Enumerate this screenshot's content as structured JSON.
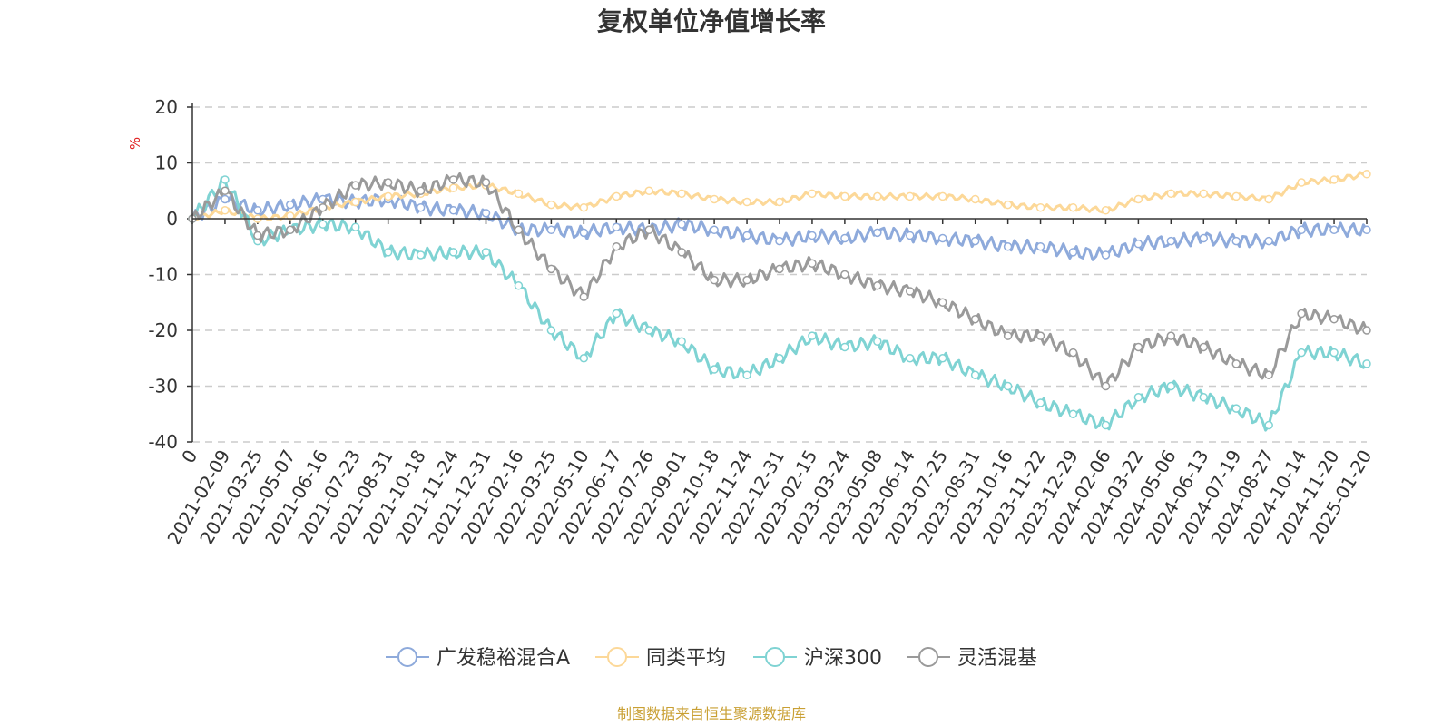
{
  "title": "复权单位净值增长率",
  "source": "制图数据来自恒生聚源数据库",
  "colors": {
    "fund": "#8eaadb",
    "peer": "#fcd898",
    "index": "#7fd3d3",
    "flex": "#9a9a9a",
    "grid": "#cccccc",
    "axis": "#333333"
  },
  "chart_data": {
    "type": "line",
    "title": "复权单位净值增长率",
    "ylabel": "%",
    "ylim": [
      -40,
      20
    ],
    "yticks": [
      20,
      10,
      0,
      -10,
      -20,
      -30,
      -40
    ],
    "grid": true,
    "legend_position": "bottom-center",
    "categories": [
      "0",
      "2021-02-09",
      "2021-03-25",
      "2021-05-07",
      "2021-06-16",
      "2021-07-23",
      "2021-08-31",
      "2021-10-18",
      "2021-11-24",
      "2021-12-31",
      "2022-02-16",
      "2022-03-25",
      "2022-05-10",
      "2022-06-17",
      "2022-07-26",
      "2022-09-01",
      "2022-10-18",
      "2022-11-24",
      "2022-12-31",
      "2023-02-15",
      "2023-03-24",
      "2023-05-08",
      "2023-06-14",
      "2023-07-25",
      "2023-08-31",
      "2023-10-16",
      "2023-11-22",
      "2023-12-29",
      "2024-02-06",
      "2024-03-22",
      "2024-05-06",
      "2024-06-13",
      "2024-07-19",
      "2024-08-27",
      "2024-10-14",
      "2024-11-20",
      "2025-01-20"
    ],
    "series": [
      {
        "name": "广发稳裕混合A",
        "color_key": "fund",
        "values": [
          0,
          3.5,
          1.5,
          2.5,
          3.5,
          3,
          3.5,
          2,
          1.5,
          1,
          -2,
          -2,
          -2.5,
          -1.5,
          -2,
          -1,
          -2,
          -3,
          -4,
          -3,
          -3.5,
          -2.5,
          -3,
          -3.5,
          -4,
          -5,
          -5,
          -6,
          -6.5,
          -4.5,
          -4,
          -3.5,
          -4,
          -4,
          -2,
          -2,
          -2
        ]
      },
      {
        "name": "同类平均",
        "color_key": "peer",
        "values": [
          0,
          1.5,
          0,
          0.5,
          2,
          3,
          4,
          4.5,
          5.5,
          6,
          4.5,
          2.5,
          2,
          4,
          5,
          4.5,
          3.5,
          3,
          3,
          4.5,
          4,
          4,
          4,
          4,
          3.5,
          2.5,
          2,
          2,
          1.5,
          3.5,
          4.5,
          4.5,
          4,
          3.5,
          6.5,
          7,
          8
        ]
      },
      {
        "name": "沪深300",
        "color_key": "index",
        "values": [
          0,
          7,
          -4,
          -2,
          -1,
          -1.5,
          -6,
          -6.5,
          -6,
          -6,
          -12,
          -20,
          -25,
          -17,
          -20,
          -22,
          -27,
          -28,
          -25,
          -21,
          -23,
          -22,
          -25,
          -25,
          -28,
          -30,
          -33,
          -35,
          -37,
          -32,
          -30,
          -32,
          -34,
          -37,
          -24,
          -24,
          -26
        ]
      },
      {
        "name": "灵活混基",
        "color_key": "flex",
        "values": [
          0,
          5,
          -3,
          -2,
          2,
          6,
          6.5,
          5,
          7,
          6.5,
          -2,
          -9,
          -14,
          -5,
          -2,
          -6,
          -11,
          -11,
          -9,
          -8,
          -10,
          -12,
          -13,
          -15,
          -18,
          -21,
          -21,
          -24,
          -30,
          -23,
          -21,
          -23,
          -26,
          -28,
          -17,
          -18,
          -20
        ]
      }
    ]
  }
}
